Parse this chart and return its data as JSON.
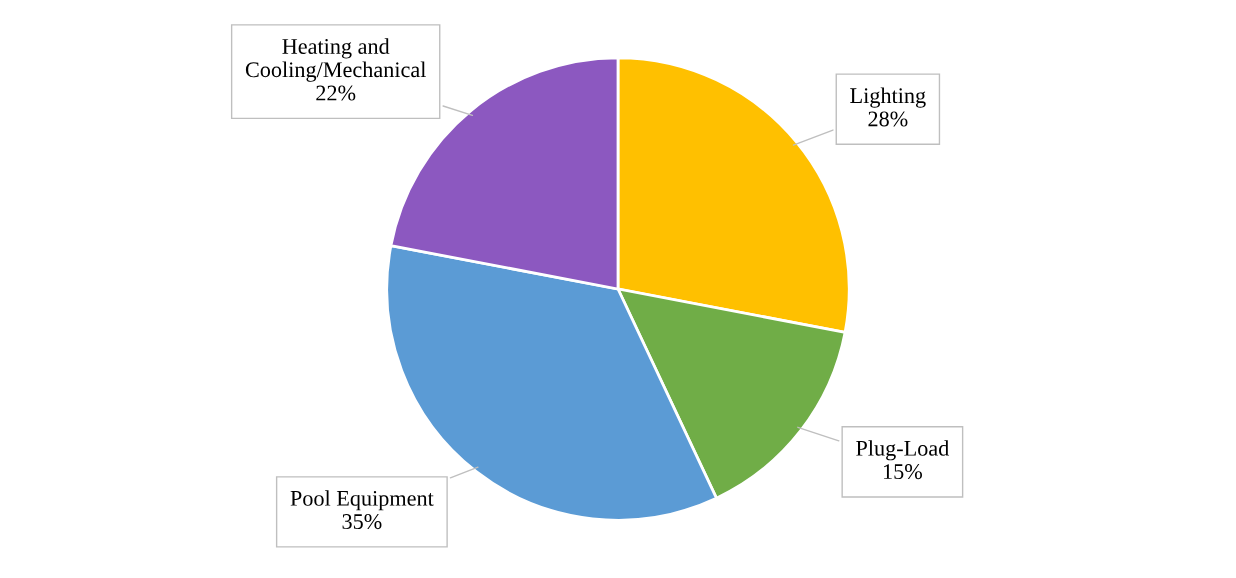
{
  "chart_data": {
    "type": "pie",
    "categories": [
      "Lighting",
      "Plug-Load",
      "Pool Equipment",
      "Heating and Cooling/Mechanical"
    ],
    "values": [
      28,
      15,
      35,
      22
    ],
    "value_labels": [
      "28%",
      "15%",
      "35%",
      "22%"
    ],
    "colors": [
      "#ffc000",
      "#70ad47",
      "#5b9bd5",
      "#8c58c0"
    ],
    "legend": false
  }
}
